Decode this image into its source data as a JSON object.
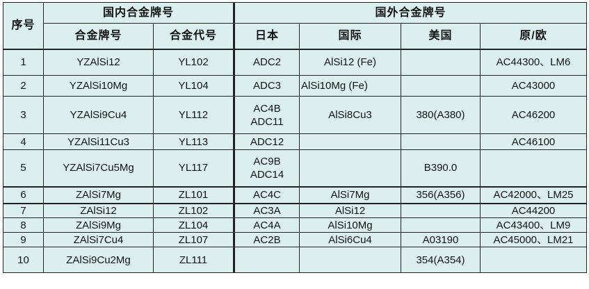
{
  "header": {
    "seq": "序号",
    "domestic": "国内合金牌号",
    "foreign": "国外合金牌号",
    "columns": [
      "合金牌号",
      "合金代号",
      "日本",
      "国际",
      "美国",
      "原/欧"
    ]
  },
  "rows": [
    {
      "seq": "1",
      "grade": "YZAlSi12",
      "code": "YL102",
      "japan": "ADC2",
      "intl": "AlSi12 (Fe)",
      "us": "",
      "eu": "AC44300、LM6"
    },
    {
      "seq": "2",
      "grade": "YZAlSi10Mg",
      "code": "YL104",
      "japan": "ADC3",
      "intl": "AlSi10Mg (Fe)",
      "us": "",
      "eu": "AC43000"
    },
    {
      "seq": "3",
      "grade": "YZAlSi9Cu4",
      "code": "YL112",
      "japan": "AC4B\nADC11",
      "intl": "AlSi8Cu3",
      "us": "380(A380)",
      "eu": "AC46200"
    },
    {
      "seq": "4",
      "grade": "YZAlSi11Cu3",
      "code": "YL113",
      "japan": "ADC12",
      "intl": "",
      "us": "",
      "eu": "AC46100"
    },
    {
      "seq": "5",
      "grade": "YZAlSi7Cu5Mg",
      "code": "YL117",
      "japan": "AC9B\nADC14",
      "intl": "",
      "us": "B390.0",
      "eu": ""
    },
    {
      "seq": "6",
      "grade": "ZAlSi7Mg",
      "code": "ZL101",
      "japan": "AC4C",
      "intl": "AlSi7Mg",
      "us": "356(A356)",
      "eu": "AC42000、LM25"
    },
    {
      "seq": "7",
      "grade": "ZAlSi12",
      "code": "ZL102",
      "japan": "AC3A",
      "intl": "AlSi12",
      "us": "",
      "eu": "AC44200"
    },
    {
      "seq": "8",
      "grade": "ZAlSi9Mg",
      "code": "ZL104",
      "japan": "AC4A",
      "intl": "AlSi10Mg",
      "us": "",
      "eu": "AC43400、LM9"
    },
    {
      "seq": "9",
      "grade": "ZAlSi7Cu4",
      "code": "ZL107",
      "japan": "AC2B",
      "intl": "AlSi6Cu4",
      "us": "A03190",
      "eu": "AC45000、LM21"
    },
    {
      "seq": "10",
      "grade": "ZAlSi9Cu2Mg",
      "code": "ZL111",
      "japan": "",
      "intl": "",
      "us": "354(A354)",
      "eu": ""
    }
  ],
  "colors": {
    "background": "#dcefef",
    "border": "#222222"
  }
}
